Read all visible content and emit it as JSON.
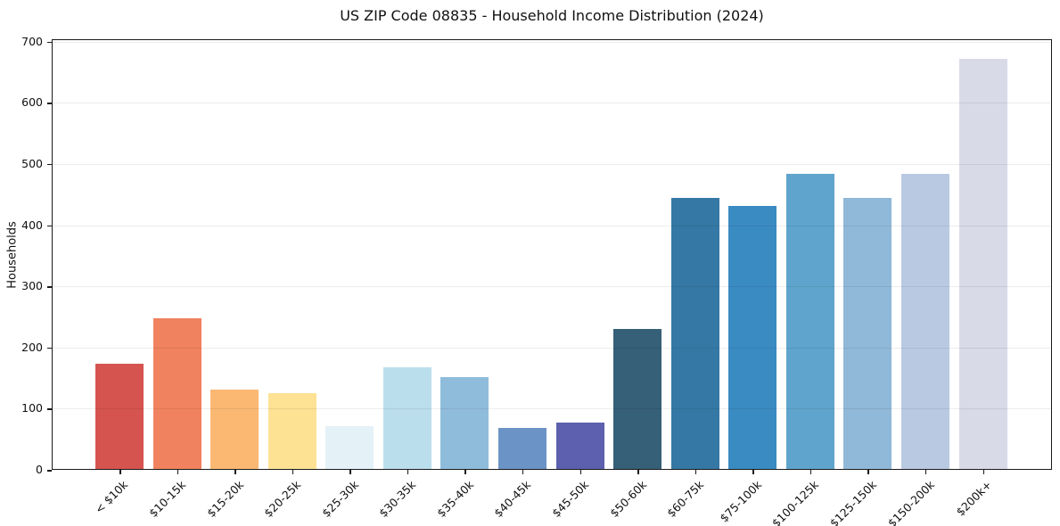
{
  "figure": {
    "background": "#ffffff"
  },
  "chart_data": {
    "type": "bar",
    "title": "US ZIP Code 08835 - Household Income Distribution (2024)",
    "xlabel": "",
    "ylabel": "Households",
    "categories": [
      "< $10k",
      "$10-15k",
      "$15-20k",
      "$20-25k",
      "$25-30k",
      "$30-35k",
      "$35-40k",
      "$40-45k",
      "$45-50k",
      "$50-60k",
      "$60-75k",
      "$75-100k",
      "$100-125k",
      "$125-150k",
      "$150-200k",
      "$200k+"
    ],
    "values": [
      173,
      248,
      131,
      126,
      72,
      167,
      152,
      68,
      77,
      230,
      445,
      432,
      484,
      445,
      484,
      672
    ],
    "bar_colors": [
      "#d6544f",
      "#f0825f",
      "#fab873",
      "#fde294",
      "#e4f1f7",
      "#bbdeec",
      "#8fbcdb",
      "#6b93c5",
      "#5c60ae",
      "#365f78",
      "#3578a5",
      "#3a8bc2",
      "#5fa4cc",
      "#90b8d8",
      "#b9c9e1",
      "#d8dae8"
    ],
    "ylim": [
      0,
      704
    ],
    "yticks": [
      0,
      100,
      200,
      300,
      400,
      500,
      600,
      700
    ],
    "grid": "horizontal",
    "legend": "none",
    "axis_color": "#1a1a1a",
    "gridline_color": "#ebebeb"
  }
}
